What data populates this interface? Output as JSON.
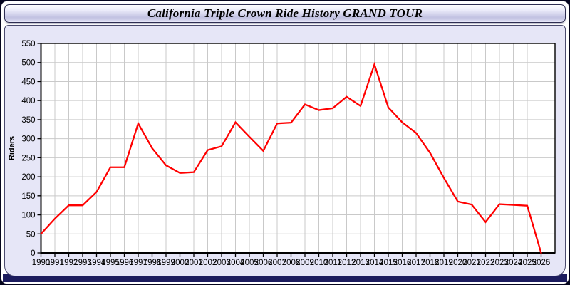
{
  "window": {
    "title": "California Triple Crown Ride History GRAND TOUR"
  },
  "chart_data": {
    "type": "line",
    "title": "California Triple Crown Ride History GRAND TOUR",
    "xlabel": "",
    "ylabel": "Riders",
    "x": [
      1990,
      1991,
      1992,
      1993,
      1994,
      1995,
      1996,
      1997,
      1998,
      1999,
      2000,
      2001,
      2002,
      2003,
      2004,
      2005,
      2006,
      2007,
      2008,
      2009,
      2010,
      2011,
      2012,
      2013,
      2014,
      2015,
      2016,
      2017,
      2018,
      2019,
      2020,
      2021,
      2022,
      2023,
      2024,
      2025,
      2026
    ],
    "series": [
      {
        "name": "Riders",
        "values": [
          50,
          90,
          125,
          125,
          160,
          225,
          225,
          340,
          275,
          230,
          210,
          212,
          270,
          280,
          343,
          305,
          268,
          340,
          342,
          390,
          375,
          380,
          410,
          386,
          495,
          382,
          343,
          315,
          263,
          197,
          135,
          127,
          81,
          128,
          126,
          124,
          0
        ]
      }
    ],
    "ylim": [
      0,
      550
    ],
    "ytick_step": 50,
    "yticks": [
      0,
      50,
      100,
      150,
      200,
      250,
      300,
      350,
      400,
      450,
      500,
      550
    ],
    "grid": true,
    "legend": "none",
    "colors": {
      "line": "#ff0000",
      "grid": "#c9c9c9",
      "plot_bg": "#ffffff",
      "panel_bg": "#e6e6f7",
      "axis": "#000000",
      "text": "#000000"
    }
  }
}
